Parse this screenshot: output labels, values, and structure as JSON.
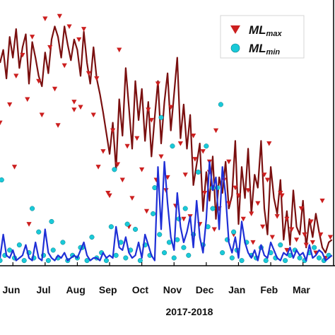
{
  "chart_data": {
    "type": "line",
    "xlabel": "2017-2018",
    "ylabel": "",
    "x_ticks": [
      "Jun",
      "Jul",
      "Aug",
      "Sep",
      "Oct",
      "Nov",
      "Dec",
      "Jan",
      "Feb",
      "Mar"
    ],
    "x_domain_months": [
      0.6,
      10.95
    ],
    "y_domain": [
      0,
      100
    ],
    "grid": false,
    "legend_position": "top-right",
    "colors": {
      "max_line": "#7a1010",
      "max_marker": "#cc1f1f",
      "min_line": "#1f2fd6",
      "min_marker": "#19c9d8",
      "min_marker_edge": "#0a7f8a"
    },
    "legend": [
      {
        "name_main": "ML",
        "name_sub": "max",
        "marker": "triangle-down"
      },
      {
        "name_main": "ML",
        "name_sub": "min",
        "marker": "circle"
      }
    ],
    "series_max_line": {
      "name": "ML max (daily)",
      "x": [
        0.6,
        0.7,
        0.8,
        0.9,
        1.0,
        1.1,
        1.2,
        1.3,
        1.4,
        1.5,
        1.6,
        1.7,
        1.8,
        1.9,
        2.0,
        2.1,
        2.2,
        2.3,
        2.4,
        2.5,
        2.6,
        2.7,
        2.8,
        2.9,
        3.0,
        3.1,
        3.2,
        3.3,
        3.4,
        3.5,
        3.6,
        3.7,
        3.8,
        3.9,
        4.0,
        4.1,
        4.2,
        4.3,
        4.4,
        4.5,
        4.6,
        4.7,
        4.8,
        4.9,
        5.0,
        5.1,
        5.2,
        5.3,
        5.4,
        5.5,
        5.6,
        5.7,
        5.8,
        5.9,
        6.0,
        6.1,
        6.2,
        6.3,
        6.4,
        6.5,
        6.6,
        6.7,
        6.8,
        6.9,
        7.0,
        7.1,
        7.2,
        7.3,
        7.4,
        7.5,
        7.6,
        7.7,
        7.8,
        7.9,
        8.0,
        8.1,
        8.2,
        8.3,
        8.4,
        8.5,
        8.6,
        8.7,
        8.8,
        8.9,
        9.0,
        9.1,
        9.2,
        9.3,
        9.4,
        9.5,
        9.6,
        9.7,
        9.8,
        9.9,
        10.0,
        10.1,
        10.2,
        10.3,
        10.4,
        10.5,
        10.6,
        10.7,
        10.8,
        10.9
      ],
      "y": [
        78,
        83,
        72,
        88,
        80,
        91,
        76,
        84,
        89,
        70,
        86,
        80,
        73,
        69,
        82,
        74,
        87,
        92,
        88,
        80,
        92,
        85,
        79,
        87,
        83,
        73,
        90,
        78,
        70,
        84,
        72,
        66,
        59,
        51,
        43,
        55,
        37,
        64,
        50,
        76,
        61,
        45,
        71,
        56,
        68,
        48,
        63,
        42,
        57,
        71,
        47,
        63,
        74,
        52,
        66,
        80,
        49,
        62,
        45,
        58,
        31,
        39,
        47,
        21,
        36,
        25,
        42,
        18,
        34,
        28,
        40,
        22,
        27,
        48,
        16,
        38,
        26,
        45,
        20,
        35,
        30,
        48,
        22,
        12,
        38,
        26,
        20,
        33,
        10,
        21,
        8,
        29,
        15,
        12,
        25,
        7,
        18,
        11,
        20,
        13,
        7,
        5,
        9,
        10
      ]
    },
    "series_min_line": {
      "name": "ML min (daily)",
      "x": [
        0.6,
        0.7,
        0.8,
        0.9,
        1.0,
        1.1,
        1.2,
        1.3,
        1.4,
        1.5,
        1.6,
        1.7,
        1.8,
        1.9,
        2.0,
        2.1,
        2.2,
        2.3,
        2.4,
        2.5,
        2.6,
        2.7,
        2.8,
        2.9,
        3.0,
        3.1,
        3.2,
        3.3,
        3.4,
        3.5,
        3.6,
        3.7,
        3.8,
        3.9,
        4.0,
        4.1,
        4.2,
        4.3,
        4.4,
        4.5,
        4.6,
        4.7,
        4.8,
        4.9,
        5.0,
        5.1,
        5.2,
        5.3,
        5.4,
        5.5,
        5.6,
        5.7,
        5.8,
        5.9,
        6.0,
        6.1,
        6.2,
        6.3,
        6.4,
        6.5,
        6.6,
        6.7,
        6.8,
        6.9,
        7.0,
        7.1,
        7.2,
        7.3,
        7.4,
        7.5,
        7.6,
        7.7,
        7.8,
        7.9,
        8.0,
        8.1,
        8.2,
        8.3,
        8.4,
        8.5,
        8.6,
        8.7,
        8.8,
        8.9,
        9.0,
        9.1,
        9.2,
        9.3,
        9.4,
        9.5,
        9.6,
        9.7,
        9.8,
        9.9,
        10.0,
        10.1,
        10.2,
        10.3,
        10.4,
        10.5,
        10.6,
        10.7,
        10.8,
        10.9
      ],
      "y": [
        3,
        12,
        4,
        3,
        6,
        2,
        3,
        4,
        8,
        3,
        2,
        9,
        3,
        2,
        14,
        5,
        3,
        2,
        4,
        3,
        5,
        2,
        3,
        4,
        3,
        6,
        9,
        4,
        2,
        3,
        3,
        2,
        5,
        3,
        4,
        3,
        15,
        7,
        6,
        11,
        5,
        3,
        4,
        9,
        3,
        12,
        8,
        4,
        2,
        38,
        14,
        40,
        24,
        11,
        6,
        28,
        15,
        9,
        13,
        19,
        7,
        25,
        11,
        5,
        18,
        40,
        29,
        34,
        14,
        38,
        27,
        9,
        5,
        11,
        3,
        17,
        9,
        5,
        3,
        6,
        2,
        8,
        4,
        3,
        9,
        6,
        3,
        2,
        5,
        4,
        7,
        3,
        6,
        4,
        5,
        2,
        8,
        3,
        4,
        6,
        5,
        2,
        3,
        4
      ]
    },
    "series_max_points": {
      "name": "ML max",
      "x": [
        0.6,
        0.9,
        1.1,
        1.3,
        1.45,
        1.6,
        1.8,
        1.9,
        2.0,
        2.15,
        2.3,
        2.45,
        2.6,
        2.75,
        2.9,
        3.05,
        3.2,
        3.35,
        3.5,
        3.65,
        3.8,
        3.95,
        4.1,
        4.25,
        4.4,
        4.55,
        4.7,
        4.85,
        5.0,
        5.15,
        5.3,
        5.45,
        5.6,
        5.75,
        5.9,
        6.05,
        6.2,
        6.35,
        6.5,
        6.65,
        6.8,
        6.95,
        7.1,
        7.25,
        7.4,
        7.55,
        7.7,
        7.85,
        8.0,
        8.15,
        8.3,
        8.45,
        8.6,
        8.75,
        8.9,
        9.05,
        9.2,
        9.35,
        9.5,
        9.65,
        9.8,
        9.95,
        10.1,
        10.25,
        10.4,
        10.55,
        10.7,
        10.85,
        1.05,
        2.4,
        3.1,
        4.0,
        4.6,
        5.2,
        5.8,
        6.3,
        6.9,
        7.3,
        7.9,
        8.4,
        8.95,
        9.5,
        10.05,
        10.6,
        1.5,
        2.9,
        3.6,
        4.3,
        5.5,
        6.6,
        7.1,
        7.7,
        8.8,
        9.3,
        10.3
      ],
      "y": [
        55,
        62,
        73,
        81,
        64,
        88,
        71,
        58,
        95,
        84,
        68,
        96,
        77,
        92,
        63,
        87,
        91,
        74,
        58,
        38,
        44,
        28,
        52,
        39,
        33,
        46,
        26,
        49,
        37,
        21,
        56,
        33,
        42,
        29,
        61,
        23,
        47,
        35,
        19,
        41,
        16,
        28,
        36,
        14,
        22,
        33,
        40,
        12,
        27,
        18,
        29,
        9,
        24,
        15,
        33,
        11,
        19,
        27,
        6,
        14,
        10,
        22,
        8,
        17,
        5,
        12,
        3,
        11,
        38,
        54,
        61,
        27,
        15,
        60,
        34,
        18,
        44,
        52,
        30,
        20,
        47,
        18,
        12,
        25,
        16,
        60,
        72,
        83,
        70,
        50,
        40,
        24,
        35,
        28,
        9
      ]
    },
    "series_min_points": {
      "name": "ML min",
      "x": [
        0.6,
        0.75,
        0.9,
        1.05,
        1.2,
        1.35,
        1.5,
        1.65,
        1.8,
        1.95,
        2.1,
        2.25,
        2.4,
        2.55,
        2.7,
        2.85,
        3.0,
        3.15,
        3.3,
        3.45,
        3.6,
        3.75,
        3.9,
        4.05,
        4.2,
        4.35,
        4.5,
        4.65,
        4.8,
        4.95,
        5.1,
        5.25,
        5.4,
        5.55,
        5.7,
        5.85,
        6.0,
        6.15,
        6.3,
        6.45,
        6.6,
        6.75,
        6.9,
        7.05,
        7.2,
        7.35,
        7.5,
        7.65,
        7.8,
        7.95,
        8.1,
        8.25,
        8.4,
        8.55,
        8.7,
        8.85,
        9.0,
        9.15,
        9.3,
        9.45,
        9.6,
        9.75,
        9.9,
        10.05,
        10.2,
        10.35,
        10.5,
        10.65,
        10.8,
        5.6,
        5.95,
        6.35,
        7.0,
        7.2,
        7.45,
        4.15,
        4.55,
        5.35,
        6.1,
        7.85,
        0.65,
        1.6,
        2.2,
        3.1
      ],
      "y": [
        2,
        4,
        6,
        3,
        8,
        2,
        5,
        3,
        13,
        4,
        2,
        6,
        3,
        9,
        2,
        4,
        3,
        7,
        2,
        11,
        3,
        5,
        2,
        15,
        4,
        9,
        3,
        6,
        14,
        2,
        8,
        4,
        30,
        12,
        5,
        9,
        3,
        18,
        7,
        4,
        12,
        36,
        8,
        15,
        22,
        30,
        5,
        10,
        3,
        6,
        2,
        9,
        4,
        3,
        7,
        2,
        5,
        3,
        8,
        2,
        4,
        6,
        3,
        2,
        5,
        7,
        3,
        2,
        4,
        57,
        46,
        22,
        46,
        30,
        62,
        37,
        16,
        20,
        10,
        13,
        33,
        22,
        17,
        7
      ]
    }
  }
}
